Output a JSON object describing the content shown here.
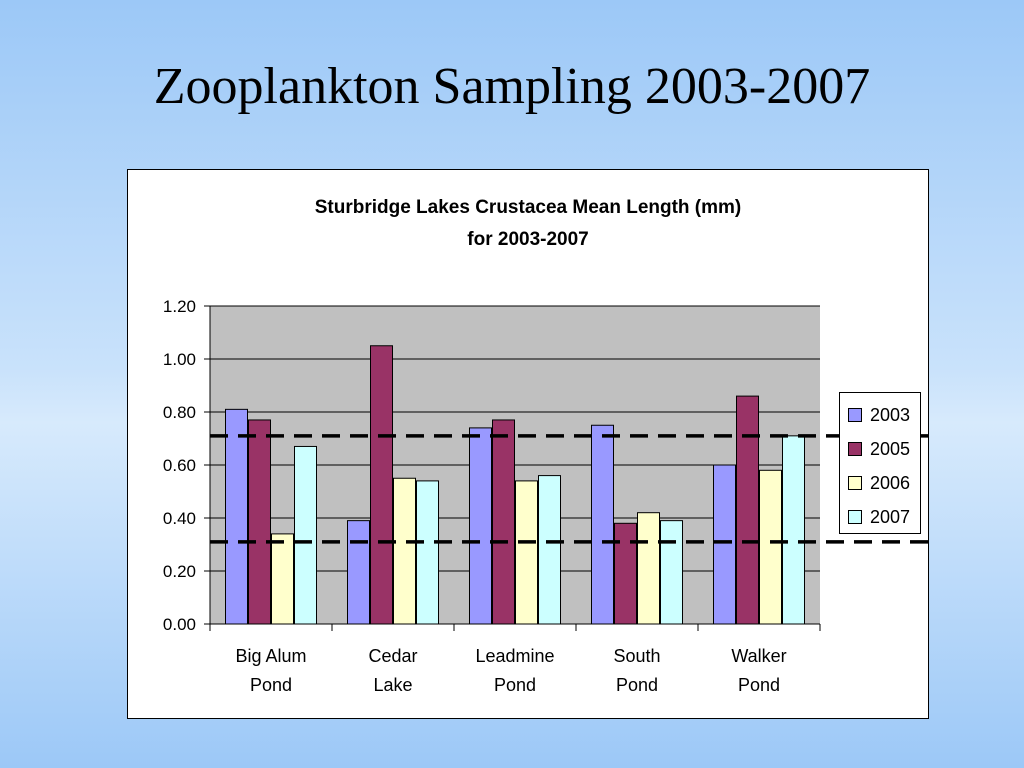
{
  "slide": {
    "title": "Zooplankton Sampling 2003-2007"
  },
  "chart_data": {
    "type": "bar",
    "title_lines": [
      "Sturbridge Lakes Crustacea Mean Length (mm)",
      "for 2003-2007"
    ],
    "xlabel": "",
    "ylabel": "",
    "categories": [
      [
        "Big Alum",
        "Pond"
      ],
      [
        "Cedar",
        "Lake"
      ],
      [
        "Leadmine",
        "Pond"
      ],
      [
        "South",
        "Pond"
      ],
      [
        "Walker",
        "Pond"
      ]
    ],
    "series": [
      {
        "name": "2003",
        "color": "#9999ff",
        "values": [
          0.81,
          0.39,
          0.74,
          0.75,
          0.6
        ]
      },
      {
        "name": "2005",
        "color": "#993366",
        "values": [
          0.77,
          1.05,
          0.77,
          0.38,
          0.86
        ]
      },
      {
        "name": "2006",
        "color": "#ffffcc",
        "values": [
          0.34,
          0.55,
          0.54,
          0.42,
          0.58
        ]
      },
      {
        "name": "2007",
        "color": "#ccffff",
        "values": [
          0.67,
          0.54,
          0.56,
          0.39,
          0.71
        ]
      }
    ],
    "ylim": [
      0,
      1.2
    ],
    "yticks": [
      "0.00",
      "0.20",
      "0.40",
      "0.60",
      "0.80",
      "1.00",
      "1.20"
    ],
    "grid": true,
    "plot_background": "#c0c0c0",
    "reference_lines": [
      0.71,
      0.31
    ],
    "legend_position": "right"
  }
}
